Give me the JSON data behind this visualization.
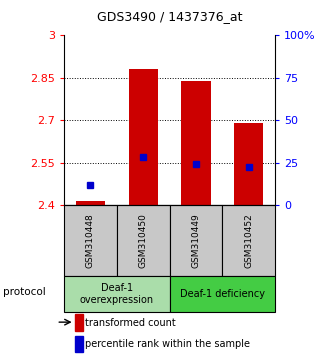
{
  "title": "GDS3490 / 1437376_at",
  "samples": [
    "GSM310448",
    "GSM310450",
    "GSM310449",
    "GSM310452"
  ],
  "bar_values": [
    2.415,
    2.88,
    2.84,
    2.69
  ],
  "bar_base": 2.4,
  "percentile_values": [
    2.47,
    2.57,
    2.545,
    2.535
  ],
  "ylim": [
    2.4,
    3.0
  ],
  "yticks": [
    2.4,
    2.55,
    2.7,
    2.85,
    3.0
  ],
  "ytick_labels": [
    "2.4",
    "2.55",
    "2.7",
    "2.85",
    "3"
  ],
  "right_yticks": [
    0,
    25,
    50,
    75,
    100
  ],
  "right_ytick_labels": [
    "0",
    "25",
    "50",
    "75",
    "100%"
  ],
  "bar_color": "#cc0000",
  "percentile_color": "#0000cc",
  "groups": [
    {
      "label": "Deaf-1\noverexpression",
      "samples": [
        0,
        1
      ],
      "color": "#aaddaa"
    },
    {
      "label": "Deaf-1 deficiency",
      "samples": [
        2,
        3
      ],
      "color": "#44cc44"
    }
  ],
  "protocol_label": "protocol",
  "background_color": "#ffffff",
  "label_area_color": "#c8c8c8"
}
